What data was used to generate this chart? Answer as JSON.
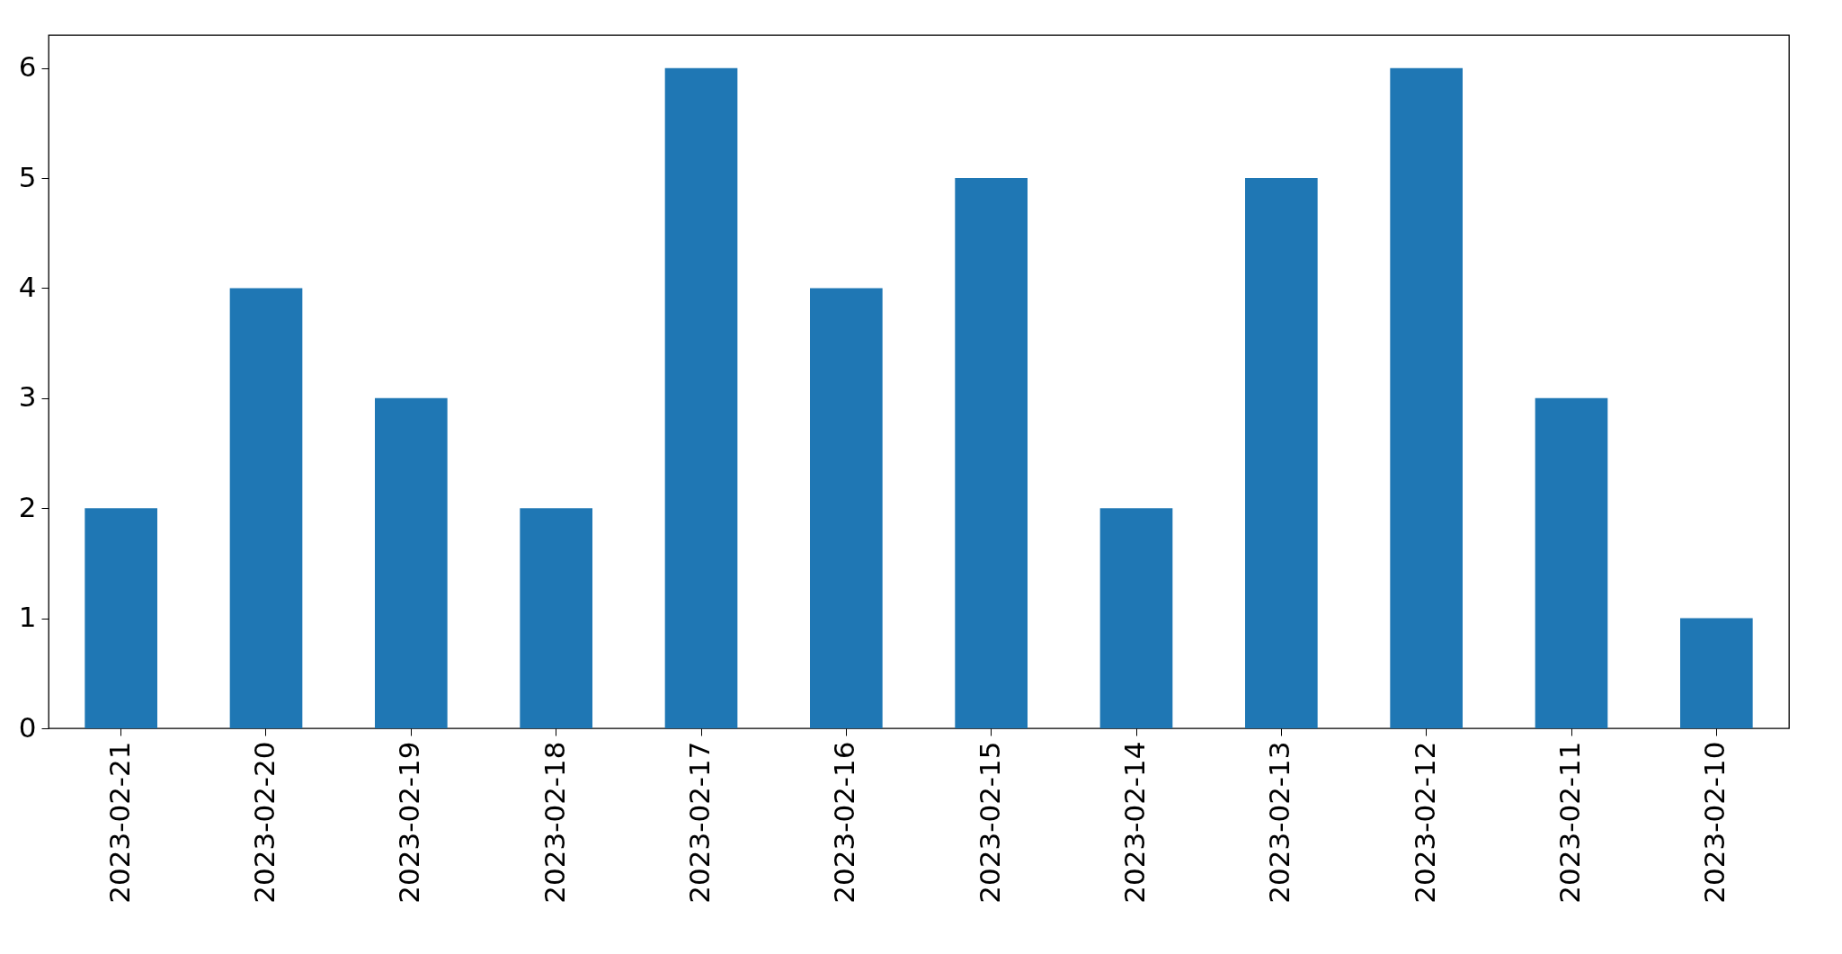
{
  "chart_data": {
    "type": "bar",
    "categories": [
      "2023-02-21",
      "2023-02-20",
      "2023-02-19",
      "2023-02-18",
      "2023-02-17",
      "2023-02-16",
      "2023-02-15",
      "2023-02-14",
      "2023-02-13",
      "2023-02-12",
      "2023-02-11",
      "2023-02-10"
    ],
    "values": [
      2,
      4,
      3,
      2,
      6,
      4,
      5,
      2,
      5,
      6,
      3,
      1
    ],
    "color": "#1f77b4",
    "ylim": [
      0,
      6.3
    ],
    "yticks": [
      0,
      1,
      2,
      3,
      4,
      5,
      6
    ],
    "grid": false
  }
}
